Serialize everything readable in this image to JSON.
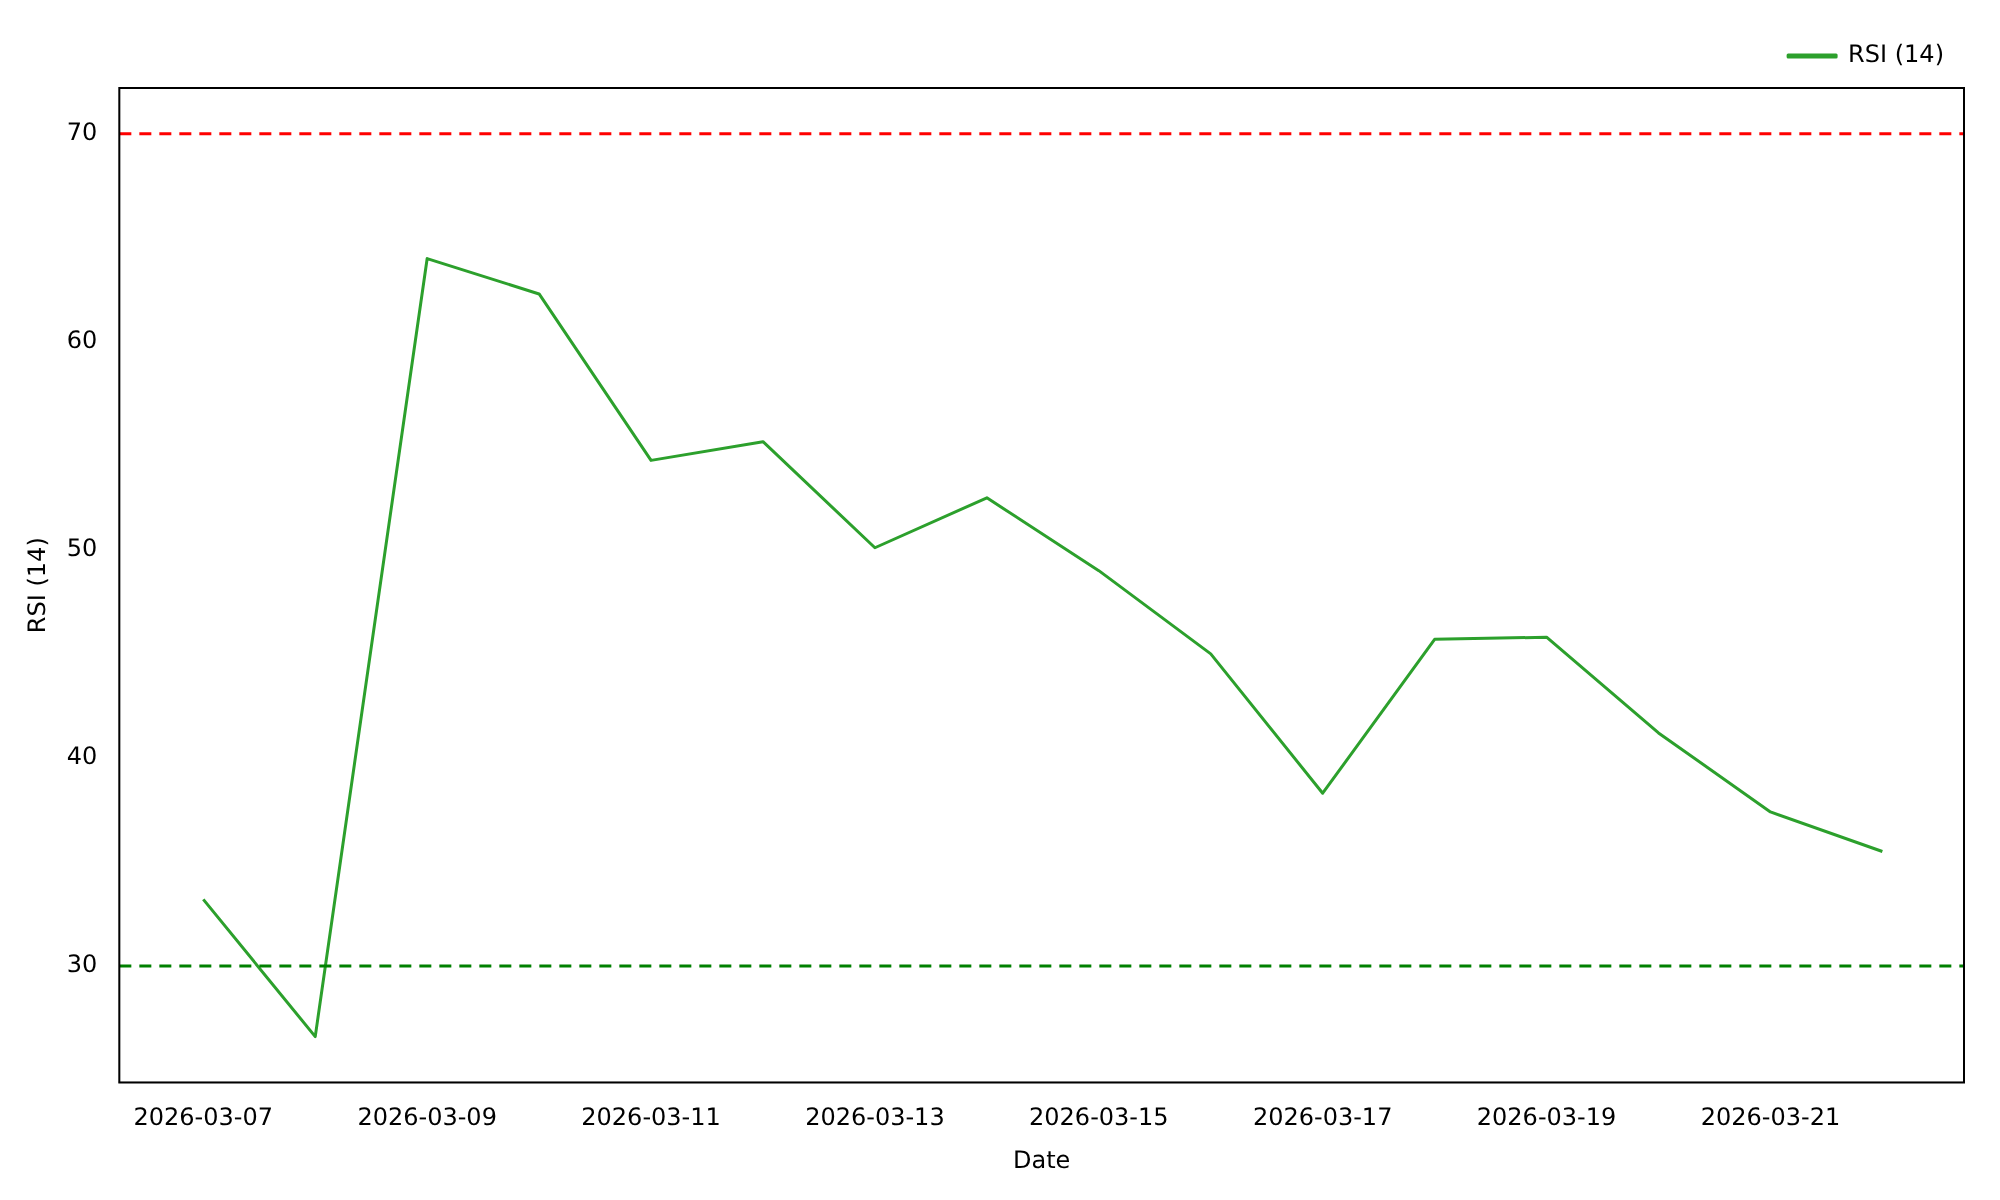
{
  "chart_data": {
    "type": "line",
    "xlabel": "Date",
    "ylabel": "RSI (14)",
    "x": [
      "2026-03-07",
      "2026-03-08",
      "2026-03-09",
      "2026-03-10",
      "2026-03-11",
      "2026-03-12",
      "2026-03-13",
      "2026-03-14",
      "2026-03-15",
      "2026-03-16",
      "2026-03-17",
      "2026-03-18",
      "2026-03-19",
      "2026-03-20",
      "2026-03-21",
      "2026-03-22"
    ],
    "series": [
      {
        "name": "RSI (14)",
        "color": "#2ca02c",
        "values": [
          33.2,
          26.6,
          64.0,
          62.3,
          54.3,
          55.2,
          50.1,
          52.5,
          49.0,
          45.0,
          38.3,
          45.7,
          45.8,
          41.2,
          37.4,
          35.5
        ]
      }
    ],
    "xlim": [
      "2026-03-06T06:00",
      "2026-03-22T17:30"
    ],
    "xticks": [
      "2026-03-07",
      "2026-03-09",
      "2026-03-11",
      "2026-03-13",
      "2026-03-15",
      "2026-03-17",
      "2026-03-19",
      "2026-03-21"
    ],
    "ylim": [
      24.4,
      72.2
    ],
    "yticks": [
      30,
      40,
      50,
      60,
      70
    ],
    "ref_lines": [
      {
        "axis": "y",
        "value": 70,
        "color": "#ff0000",
        "line_style": "dashed"
      },
      {
        "axis": "y",
        "value": 30,
        "color": "#008000",
        "line_style": "dashed"
      }
    ],
    "legend": "top right",
    "grid": false,
    "marker": "none",
    "line_style": "solid"
  }
}
